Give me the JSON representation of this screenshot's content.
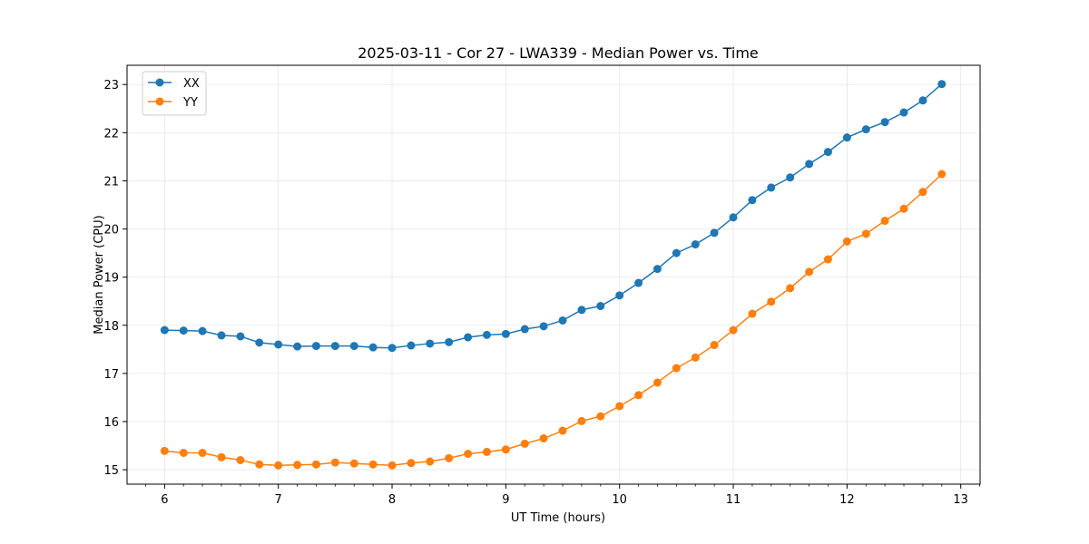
{
  "chart_data": {
    "type": "line",
    "title": "2025-03-11 - Cor 27 - LWA339 - Median Power vs. Time",
    "xlabel": "UT Time (hours)",
    "ylabel": "Median Power (CPU)",
    "xlim": [
      5.67,
      13.17
    ],
    "ylim": [
      14.7,
      23.4
    ],
    "xticks": [
      6,
      7,
      8,
      9,
      10,
      11,
      12,
      13
    ],
    "yticks": [
      15,
      16,
      17,
      18,
      19,
      20,
      21,
      22,
      23
    ],
    "grid": true,
    "legend_position": "top-left",
    "x": [
      6.0,
      6.167,
      6.333,
      6.5,
      6.667,
      6.833,
      7.0,
      7.167,
      7.333,
      7.5,
      7.667,
      7.833,
      8.0,
      8.167,
      8.333,
      8.5,
      8.667,
      8.833,
      9.0,
      9.167,
      9.333,
      9.5,
      9.667,
      9.833,
      10.0,
      10.167,
      10.333,
      10.5,
      10.667,
      10.833,
      11.0,
      11.167,
      11.333,
      11.5,
      11.667,
      11.833,
      12.0,
      12.167,
      12.333,
      12.5,
      12.667,
      12.833
    ],
    "series": [
      {
        "name": "XX",
        "color": "#1f77b4",
        "values": [
          17.9,
          17.89,
          17.88,
          17.79,
          17.77,
          17.64,
          17.6,
          17.56,
          17.57,
          17.57,
          17.57,
          17.54,
          17.53,
          17.58,
          17.62,
          17.65,
          17.75,
          17.8,
          17.82,
          17.92,
          17.98,
          18.1,
          18.32,
          18.4,
          18.62,
          18.88,
          19.17,
          19.5,
          19.68,
          19.92,
          20.24,
          20.6,
          20.86,
          21.07,
          21.35,
          21.6,
          21.9,
          22.07,
          22.22,
          22.42,
          22.67,
          23.01
        ]
      },
      {
        "name": "YY",
        "color": "#ff7f0e",
        "values": [
          15.39,
          15.35,
          15.35,
          15.26,
          15.2,
          15.11,
          15.09,
          15.1,
          15.11,
          15.15,
          15.13,
          15.11,
          15.09,
          15.14,
          15.17,
          15.24,
          15.33,
          15.37,
          15.42,
          15.54,
          15.65,
          15.81,
          16.01,
          16.11,
          16.32,
          16.55,
          16.81,
          17.11,
          17.33,
          17.59,
          17.9,
          18.24,
          18.49,
          18.77,
          19.11,
          19.37,
          19.74,
          19.9,
          20.17,
          20.42,
          20.77,
          21.14
        ]
      }
    ]
  }
}
